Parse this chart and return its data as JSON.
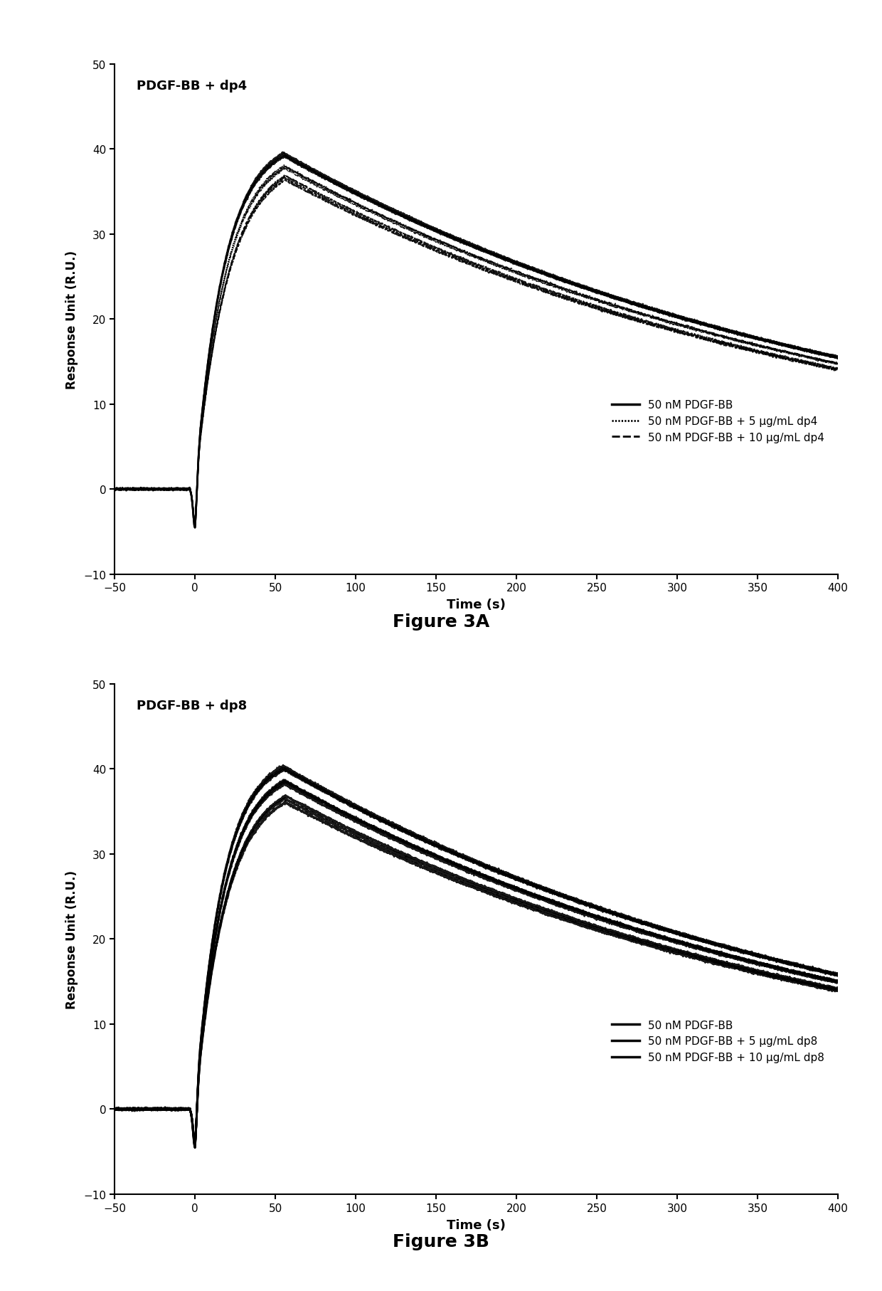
{
  "figure_title_A": "Figure 3A",
  "figure_title_B": "Figure 3B",
  "panel_title_A": "PDGF-BB + dp4",
  "panel_title_B": "PDGF-BB + dp8",
  "ylabel": "Response Unit (R.U.)",
  "xlabel": "Time (s)",
  "xlim": [
    -50,
    400
  ],
  "ylim": [
    -10,
    50
  ],
  "xticks": [
    -50,
    0,
    50,
    100,
    150,
    200,
    250,
    300,
    350,
    400
  ],
  "yticks": [
    -10,
    0,
    10,
    20,
    30,
    40,
    50
  ],
  "legend_A": [
    "50 nM PDGF-BB",
    "50 nM PDGF-BB + 5 μg/mL dp4",
    "50 nM PDGF-BB + 10 μg/mL dp4"
  ],
  "legend_B": [
    "50 nM PDGF-BB",
    "50 nM PDGF-BB + 5 μg/mL dp8",
    "50 nM PDGF-BB + 10 μg/mL dp8"
  ],
  "background_color": "#ffffff",
  "line_color": "#000000"
}
